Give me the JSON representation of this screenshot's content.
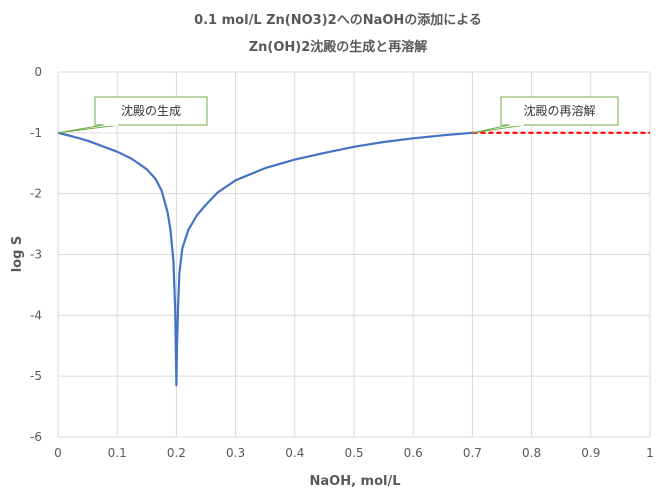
{
  "colors": {
    "series_line": "#4472C4",
    "extension_line": "#FF0000",
    "callout_border": "#70AD47",
    "gridline": "#D9D9D9",
    "text": "#595959"
  },
  "chart_data": {
    "type": "line",
    "title_line1": "0.1 mol/L Zn(NO3)2へのNaOHの添加による",
    "title_line2": "Zn(OH)2沈殿の生成と再溶解",
    "xlabel": "NaOH, mol/L",
    "ylabel": "log S",
    "xlim": [
      0,
      1
    ],
    "ylim": [
      -6,
      0
    ],
    "xticks": [
      "0",
      "0.1",
      "0.2",
      "0.3",
      "0.4",
      "0.5",
      "0.6",
      "0.7",
      "0.8",
      "0.9",
      "1"
    ],
    "yticks": [
      "0",
      "-1",
      "-2",
      "-3",
      "-4",
      "-5",
      "-6"
    ],
    "grid": true,
    "series": [
      {
        "name": "log S",
        "x": [
          0,
          0.025,
          0.05,
          0.075,
          0.1,
          0.125,
          0.15,
          0.165,
          0.175,
          0.185,
          0.19,
          0.195,
          0.198,
          0.2,
          0.201,
          0.203,
          0.205,
          0.21,
          0.22,
          0.235,
          0.25,
          0.27,
          0.3,
          0.35,
          0.4,
          0.45,
          0.5,
          0.55,
          0.6,
          0.65,
          0.7
        ],
        "y": [
          -1,
          -1.06,
          -1.13,
          -1.22,
          -1.31,
          -1.43,
          -1.6,
          -1.76,
          -1.95,
          -2.3,
          -2.6,
          -3.1,
          -3.9,
          -5.15,
          -4.5,
          -3.8,
          -3.3,
          -2.9,
          -2.6,
          -2.35,
          -2.18,
          -1.98,
          -1.78,
          -1.58,
          -1.44,
          -1.33,
          -1.23,
          -1.15,
          -1.09,
          -1.04,
          -1.0
        ]
      },
      {
        "name": "extension",
        "x": [
          0.7,
          1.0
        ],
        "y": [
          -1.0,
          -1.0
        ]
      }
    ],
    "annotations": [
      {
        "text": "沈殿の生成",
        "x": 0,
        "y": -1
      },
      {
        "text": "沈殿の再溶解",
        "x": 0.7,
        "y": -1
      }
    ]
  }
}
